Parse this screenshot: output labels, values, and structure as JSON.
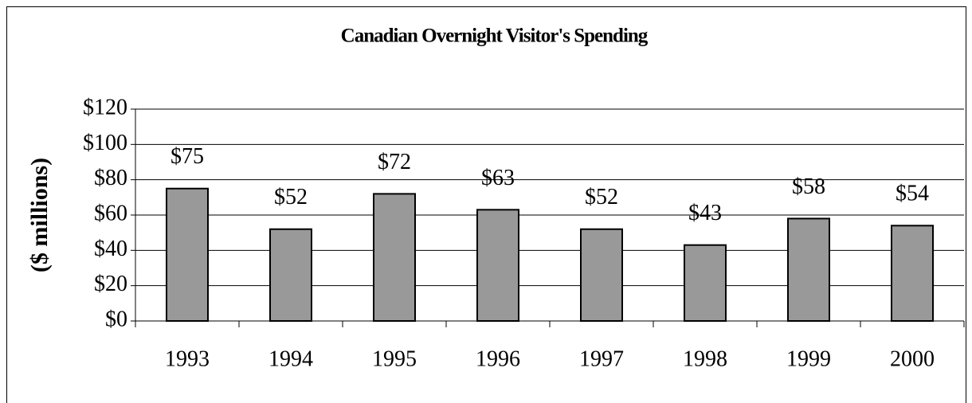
{
  "chart_data": {
    "type": "bar",
    "title": "Canadian Overnight Visitor's Spending",
    "y_label": "($ millions)",
    "categories": [
      "1993",
      "1994",
      "1995",
      "1996",
      "1997",
      "1998",
      "1999",
      "2000"
    ],
    "values": [
      75,
      52,
      72,
      63,
      52,
      43,
      58,
      54
    ],
    "value_labels": [
      "$75",
      "$52",
      "$72",
      "$63",
      "$52",
      "$43",
      "$58",
      "$54"
    ],
    "color": "#999999",
    "ylim": [
      0,
      120
    ],
    "yticks": [
      {
        "value": 0,
        "label": "$0"
      },
      {
        "value": 20,
        "label": "$20"
      },
      {
        "value": 40,
        "label": "$40"
      },
      {
        "value": 60,
        "label": "$60"
      },
      {
        "value": 80,
        "label": "$80"
      },
      {
        "value": 100,
        "label": "$100"
      },
      {
        "value": 120,
        "label": "$120"
      }
    ],
    "grid": true
  }
}
